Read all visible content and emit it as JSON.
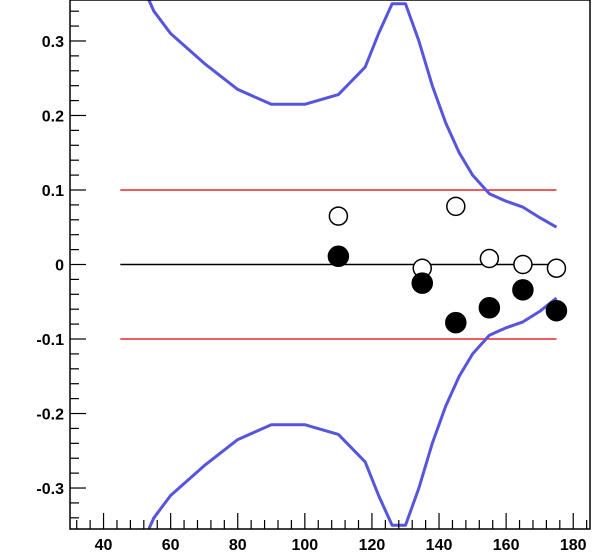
{
  "chart_data": {
    "type": "scatter",
    "xlim": [
      30,
      185
    ],
    "ylim": [
      -0.355,
      0.355
    ],
    "x_ticks": [
      40,
      60,
      80,
      100,
      120,
      140,
      160,
      180
    ],
    "x_tick_labels": [
      "40",
      "60",
      "80",
      "100",
      "120",
      "140",
      "160",
      "180"
    ],
    "y_ticks": [
      0.3,
      0.2,
      0.1,
      0,
      -0.1,
      -0.2,
      -0.3
    ],
    "y_tick_labels": [
      "0.3",
      "0.2",
      "0.1",
      "0",
      "-0.1",
      "-0.2",
      "-0.3"
    ],
    "grid": false,
    "reference_lines": [
      {
        "y": 0.1,
        "x_range": [
          45,
          175
        ],
        "color": "#e8262e"
      },
      {
        "y": 0,
        "x_range": [
          45,
          175
        ],
        "color": "#000000"
      },
      {
        "y": -0.1,
        "x_range": [
          45,
          175
        ],
        "color": "#e8262e"
      }
    ],
    "series": [
      {
        "style": "open-circle",
        "x": [
          110,
          135,
          145,
          155,
          165,
          175
        ],
        "y": [
          0.065,
          -0.005,
          0.078,
          0.008,
          0.0,
          -0.005
        ]
      },
      {
        "style": "filled-circle",
        "x": [
          110,
          135,
          145,
          155,
          165,
          175
        ],
        "y": [
          0.011,
          -0.025,
          -0.078,
          -0.058,
          -0.034,
          -0.062
        ]
      }
    ],
    "curves": [
      {
        "color": "#5555dd",
        "x": [
          50,
          55,
          60,
          70,
          80,
          90,
          100,
          110,
          118,
          122,
          126,
          130,
          134,
          138,
          142,
          146,
          150,
          155,
          160,
          165,
          170,
          175
        ],
        "y": [
          0.39,
          0.34,
          0.31,
          0.27,
          0.235,
          0.215,
          0.215,
          0.228,
          0.265,
          0.31,
          0.35,
          0.35,
          0.3,
          0.24,
          0.19,
          0.15,
          0.12,
          0.095,
          0.085,
          0.077,
          0.063,
          0.05
        ]
      },
      {
        "color": "#5555dd",
        "x": [
          50,
          55,
          60,
          70,
          80,
          90,
          100,
          110,
          118,
          122,
          126,
          130,
          134,
          138,
          142,
          146,
          150,
          155,
          160,
          165,
          170,
          175
        ],
        "y": [
          -0.39,
          -0.34,
          -0.31,
          -0.27,
          -0.235,
          -0.215,
          -0.215,
          -0.228,
          -0.265,
          -0.31,
          -0.35,
          -0.35,
          -0.3,
          -0.24,
          -0.19,
          -0.15,
          -0.12,
          -0.095,
          -0.085,
          -0.077,
          -0.063,
          -0.045
        ]
      }
    ]
  }
}
